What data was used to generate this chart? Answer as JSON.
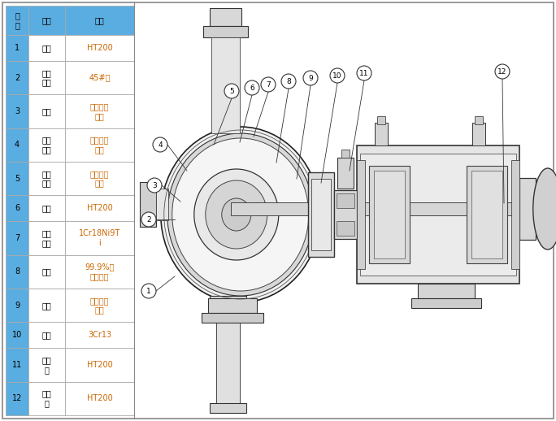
{
  "table_header_col0": "序\n号",
  "table_header_col1": "名称",
  "table_header_col2": "材质",
  "table_rows": [
    [
      "1",
      "泵体",
      "HT200"
    ],
    [
      "2",
      "叶轮\n骨架",
      "45#钢"
    ],
    [
      "3",
      "叶轮",
      "聚全氟乙\n丙烯"
    ],
    [
      "4",
      "泵体\n衬里",
      "聚全氟乙\n丙烯"
    ],
    [
      "5",
      "泵盖\n衬里",
      "聚全氟乙\n丙烯"
    ],
    [
      "6",
      "泵盖",
      "HT200"
    ],
    [
      "7",
      "机封\n压盖",
      "1Cr18Ni9T\ni"
    ],
    [
      "8",
      "静环",
      "99.9%氧\n化铝陶瓷"
    ],
    [
      "9",
      "动环",
      "填充四氟\n乙烯"
    ],
    [
      "10",
      "泵轴",
      "3Cr13"
    ],
    [
      "11",
      "轴承\n体",
      "HT200"
    ],
    [
      "12",
      "联轴\n器",
      "HT200"
    ]
  ],
  "header_bg": "#5aade0",
  "row_number_bg": "#5aade0",
  "row_name_bg": "#ffffff",
  "row_mat_bg": "#ffffff",
  "header_text_color": "#000000",
  "row_number_text_color": "#000000",
  "row_name_text_color": "#000000",
  "row_mat_text_color": "#cc6600",
  "border_color": "#aaaaaa",
  "background_color": "#ffffff",
  "callout_top_nums": [
    "5",
    "6",
    "7",
    "8",
    "9",
    "10",
    "11",
    "12"
  ],
  "callout_left_nums": [
    "4",
    "3",
    "2",
    "1"
  ]
}
